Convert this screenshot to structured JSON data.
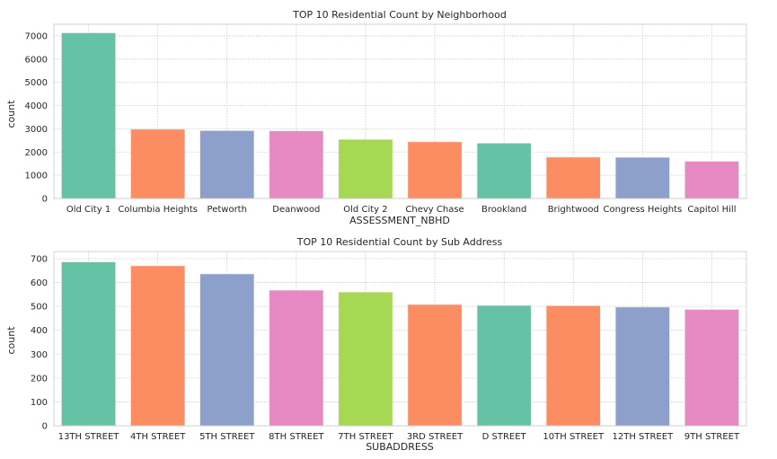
{
  "chart_data": [
    {
      "type": "bar",
      "title": "TOP 10 Residential Count by Neighborhood",
      "xlabel": "ASSESSMENT_NBHD",
      "ylabel": "count",
      "categories": [
        "Old City 1",
        "Columbia Heights",
        "Petworth",
        "Deanwood",
        "Old City 2",
        "Chevy Chase",
        "Brookland",
        "Brightwood",
        "Congress Heights",
        "Capitol Hill"
      ],
      "values": [
        7130,
        2980,
        2920,
        2910,
        2540,
        2440,
        2380,
        1780,
        1770,
        1600
      ],
      "ylim": [
        0,
        7500
      ],
      "yticks": [
        0,
        1000,
        2000,
        3000,
        4000,
        5000,
        6000,
        7000
      ],
      "grid": true,
      "colors": [
        "#66c2a5",
        "#fc8d62",
        "#8da0cb",
        "#e78ac3",
        "#a6d854",
        "#fc8d62",
        "#66c2a5",
        "#fc8d62",
        "#8da0cb",
        "#e78ac3"
      ]
    },
    {
      "type": "bar",
      "title": "TOP 10 Residential Count by Sub Address",
      "xlabel": "SUBADDRESS",
      "ylabel": "count",
      "categories": [
        "13TH STREET",
        "4TH STREET",
        "5TH STREET",
        "8TH STREET",
        "7TH STREET",
        "3RD STREET",
        "D STREET",
        "10TH STREET",
        "12TH STREET",
        "9TH STREET"
      ],
      "values": [
        686,
        670,
        636,
        568,
        560,
        508,
        504,
        503,
        497,
        487
      ],
      "ylim": [
        0,
        730
      ],
      "yticks": [
        0,
        100,
        200,
        300,
        400,
        500,
        600,
        700
      ],
      "grid": true,
      "colors": [
        "#66c2a5",
        "#fc8d62",
        "#8da0cb",
        "#e78ac3",
        "#a6d854",
        "#fc8d62",
        "#66c2a5",
        "#fc8d62",
        "#8da0cb",
        "#e78ac3"
      ]
    }
  ]
}
